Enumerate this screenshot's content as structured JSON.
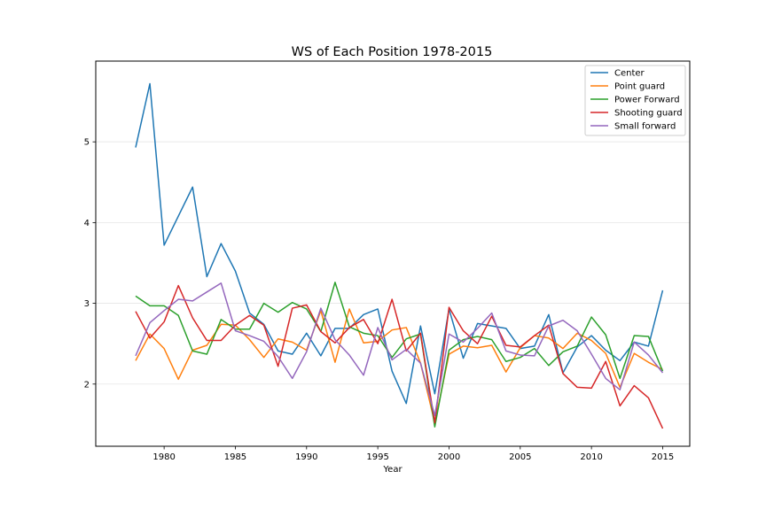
{
  "chart_data": {
    "type": "line",
    "title": "WS of Each Position 1978-2015",
    "xlabel": "Year",
    "ylabel": "",
    "xlim": [
      1975.2,
      2016.9
    ],
    "ylim": [
      1.23,
      6.0
    ],
    "xticks": [
      1980,
      1985,
      1990,
      1995,
      2000,
      2005,
      2010,
      2015
    ],
    "yticks": [
      2,
      3,
      4,
      5
    ],
    "grid": "y",
    "legend": "top-right",
    "x": [
      1978,
      1979,
      1980,
      1981,
      1982,
      1983,
      1984,
      1985,
      1986,
      1987,
      1988,
      1989,
      1990,
      1991,
      1992,
      1993,
      1994,
      1995,
      1996,
      1997,
      1998,
      1999,
      2000,
      2001,
      2002,
      2003,
      2004,
      2005,
      2006,
      2007,
      2008,
      2009,
      2010,
      2011,
      2012,
      2013,
      2014,
      2015
    ],
    "series": [
      {
        "name": "Center",
        "color": "#1f77b4",
        "values": [
          4.93,
          5.72,
          3.72,
          4.08,
          4.44,
          3.33,
          3.74,
          3.4,
          2.88,
          2.74,
          2.41,
          2.37,
          2.63,
          2.35,
          2.69,
          2.69,
          2.86,
          2.93,
          2.16,
          1.76,
          2.72,
          1.88,
          2.93,
          2.32,
          2.75,
          2.72,
          2.69,
          2.44,
          2.47,
          2.86,
          2.14,
          2.46,
          2.6,
          2.42,
          2.29,
          2.52,
          2.47,
          3.16
        ]
      },
      {
        "name": "Point guard",
        "color": "#ff7f0e",
        "values": [
          2.29,
          2.62,
          2.44,
          2.06,
          2.42,
          2.48,
          2.74,
          2.73,
          2.55,
          2.33,
          2.56,
          2.52,
          2.42,
          2.91,
          2.27,
          2.93,
          2.51,
          2.53,
          2.67,
          2.7,
          2.26,
          1.52,
          2.37,
          2.47,
          2.45,
          2.48,
          2.15,
          2.45,
          2.6,
          2.57,
          2.44,
          2.63,
          2.54,
          2.38,
          1.96,
          2.38,
          2.27,
          2.18
        ]
      },
      {
        "name": "Power Forward",
        "color": "#2ca02c",
        "values": [
          3.09,
          2.97,
          2.97,
          2.85,
          2.41,
          2.37,
          2.8,
          2.68,
          2.68,
          3.0,
          2.89,
          3.01,
          2.93,
          2.65,
          3.26,
          2.71,
          2.63,
          2.6,
          2.33,
          2.56,
          2.62,
          1.47,
          2.42,
          2.55,
          2.59,
          2.55,
          2.28,
          2.33,
          2.44,
          2.23,
          2.4,
          2.47,
          2.83,
          2.61,
          2.07,
          2.6,
          2.59,
          2.16
        ]
      },
      {
        "name": "Shooting guard",
        "color": "#d62728",
        "values": [
          2.9,
          2.57,
          2.77,
          3.22,
          2.82,
          2.54,
          2.54,
          2.73,
          2.85,
          2.73,
          2.22,
          2.94,
          2.98,
          2.65,
          2.51,
          2.7,
          2.8,
          2.5,
          3.05,
          2.41,
          2.63,
          1.52,
          2.95,
          2.66,
          2.5,
          2.84,
          2.48,
          2.46,
          2.6,
          2.73,
          2.13,
          1.96,
          1.95,
          2.28,
          1.73,
          1.98,
          1.83,
          1.45
        ]
      },
      {
        "name": "Small forward",
        "color": "#9467bd",
        "values": [
          2.35,
          2.76,
          2.91,
          3.05,
          3.03,
          3.14,
          3.25,
          2.66,
          2.6,
          2.53,
          2.34,
          2.07,
          2.4,
          2.94,
          2.55,
          2.36,
          2.11,
          2.7,
          2.3,
          2.43,
          2.26,
          1.61,
          2.62,
          2.52,
          2.69,
          2.88,
          2.41,
          2.36,
          2.35,
          2.72,
          2.79,
          2.66,
          2.37,
          2.07,
          1.93,
          2.52,
          2.36,
          2.14
        ]
      }
    ]
  }
}
